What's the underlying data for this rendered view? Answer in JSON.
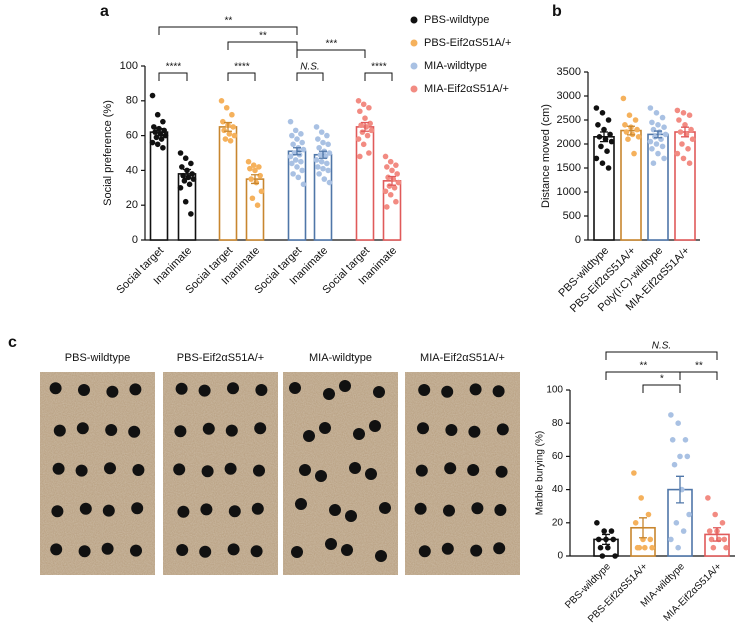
{
  "chart_data": [
    {
      "panel": "a",
      "type": "bar",
      "y_label": "Social preference (%)",
      "categories": [
        "Social target",
        "Inanimate"
      ],
      "series": [
        {
          "name": "PBS-wildtype",
          "color": "#111111",
          "edge_color": "#111111",
          "values": [
            62,
            38
          ],
          "errors": [
            2,
            2.5
          ],
          "points": [
            [
              83,
              72,
              68,
              65,
              64,
              63,
              62,
              61,
              60,
              59,
              58,
              56,
              55,
              53
            ],
            [
              50,
              47,
              44,
              42,
              40,
              38,
              37,
              36,
              35,
              34,
              32,
              30,
              22,
              15
            ]
          ]
        },
        {
          "name": "PBS-Eif2αS51A/+",
          "color": "#f5b15c",
          "edge_color": "#c8862e",
          "values": [
            65,
            35
          ],
          "errors": [
            2.5,
            2.5
          ],
          "points": [
            [
              80,
              76,
              72,
              68,
              66,
              65,
              63,
              61,
              60,
              58,
              57
            ],
            [
              45,
              43,
              42,
              41,
              40,
              37,
              35,
              33,
              28,
              24,
              20
            ]
          ]
        },
        {
          "name": "MIA-wildtype",
          "color": "#a9c1e3",
          "edge_color": "#4f76a8",
          "values": [
            51,
            49
          ],
          "errors": [
            2,
            2
          ],
          "points": [
            [
              68,
              63,
              61,
              60,
              58,
              56,
              55,
              53,
              52,
              50,
              49,
              48,
              46,
              45,
              44,
              42,
              40,
              38,
              36,
              32
            ],
            [
              65,
              62,
              60,
              58,
              56,
              55,
              53,
              51,
              50,
              49,
              48,
              46,
              45,
              44,
              42,
              41,
              40,
              38,
              35,
              33
            ]
          ]
        },
        {
          "name": "MIA-Eif2αS51A/+",
          "color": "#f28b82",
          "edge_color": "#e05a5a",
          "values": [
            65,
            34
          ],
          "errors": [
            2.5,
            2.5
          ],
          "points": [
            [
              80,
              78,
              76,
              74,
              70,
              67,
              66,
              65,
              63,
              62,
              60,
              58,
              55,
              50,
              48
            ],
            [
              48,
              45,
              43,
              42,
              40,
              38,
              36,
              35,
              33,
              31,
              30,
              28,
              26,
              22,
              19
            ]
          ]
        }
      ],
      "ylim": [
        0,
        100
      ],
      "yticks": [
        0,
        20,
        40,
        60,
        80,
        100
      ],
      "brackets": [
        {
          "from": 0,
          "to": 1,
          "label": "****"
        },
        {
          "from": 2,
          "to": 3,
          "label": "****"
        },
        {
          "from": 4,
          "to": 5,
          "label": "N.S."
        },
        {
          "from": 6,
          "to": 7,
          "label": "****"
        },
        {
          "from": 0,
          "to": 4,
          "label": "**"
        },
        {
          "from": 2,
          "to": 4,
          "label": "**"
        },
        {
          "from": 4,
          "to": 6,
          "label": "***"
        }
      ]
    },
    {
      "panel": "b",
      "type": "bar",
      "y_label": "Distance moved (cm)",
      "categories": [
        "PBS-wildtype",
        "PBS-Eif2αS51A/+",
        "Poly(I:C)-wildtype",
        "MIA-Eif2αS51A/+"
      ],
      "values": [
        2150,
        2280,
        2200,
        2250
      ],
      "errors": [
        100,
        90,
        70,
        100
      ],
      "colors": [
        "#111111",
        "#f5b15c",
        "#a9c1e3",
        "#f28b82"
      ],
      "edge_colors": [
        "#111111",
        "#c8862e",
        "#4f76a8",
        "#e05a5a"
      ],
      "points": [
        [
          2750,
          2650,
          2500,
          2400,
          2300,
          2200,
          2150,
          2100,
          2050,
          1950,
          1850,
          1700,
          1600,
          1500
        ],
        [
          2950,
          2600,
          2500,
          2400,
          2350,
          2300,
          2250,
          2200,
          2150,
          2100,
          1800
        ],
        [
          2750,
          2650,
          2550,
          2450,
          2400,
          2350,
          2300,
          2250,
          2200,
          2150,
          2100,
          2050,
          2000,
          1950,
          1900,
          1800,
          1700,
          1600
        ],
        [
          2700,
          2650,
          2600,
          2500,
          2400,
          2300,
          2250,
          2200,
          2100,
          2000,
          1900,
          1800,
          1700,
          1600
        ]
      ],
      "ylim": [
        0,
        3500
      ],
      "yticks": [
        0,
        500,
        1000,
        1500,
        2000,
        2500,
        3000,
        3500
      ]
    },
    {
      "panel": "c",
      "type": "bar",
      "y_label": "Marble burying (%)",
      "image_titles": [
        "PBS-wildtype",
        "PBS-Eif2αS51A/+",
        "MIA-wildtype",
        "MIA-Eif2αS51A/+"
      ],
      "categories": [
        "PBS-wildtype",
        "PBS-Eif2αS51A/+",
        "MIA-wildtype",
        "MIA-Eif2αS51A/+"
      ],
      "values": [
        10,
        17,
        40,
        13
      ],
      "errors": [
        3,
        6,
        8,
        4
      ],
      "colors": [
        "#111111",
        "#f5b15c",
        "#a9c1e3",
        "#f28b82"
      ],
      "edge_colors": [
        "#111111",
        "#c8862e",
        "#4f76a8",
        "#e05a5a"
      ],
      "points": [
        [
          20,
          15,
          15,
          10,
          10,
          10,
          5,
          5,
          0,
          0
        ],
        [
          50,
          35,
          25,
          20,
          10,
          10,
          5,
          5,
          5,
          5
        ],
        [
          85,
          80,
          70,
          70,
          60,
          60,
          55,
          40,
          25,
          20,
          15,
          10,
          5
        ],
        [
          35,
          25,
          20,
          15,
          15,
          10,
          10,
          10,
          5,
          5
        ]
      ],
      "ylim": [
        0,
        100
      ],
      "yticks": [
        0,
        20,
        40,
        60,
        80,
        100
      ],
      "brackets": [
        {
          "from": 1,
          "to": 2,
          "label": "*"
        },
        {
          "from": 0,
          "to": 2,
          "label": "**"
        },
        {
          "from": 2,
          "to": 3,
          "label": "**"
        },
        {
          "from": 0,
          "to": 3,
          "label": "N.S."
        }
      ]
    }
  ]
}
